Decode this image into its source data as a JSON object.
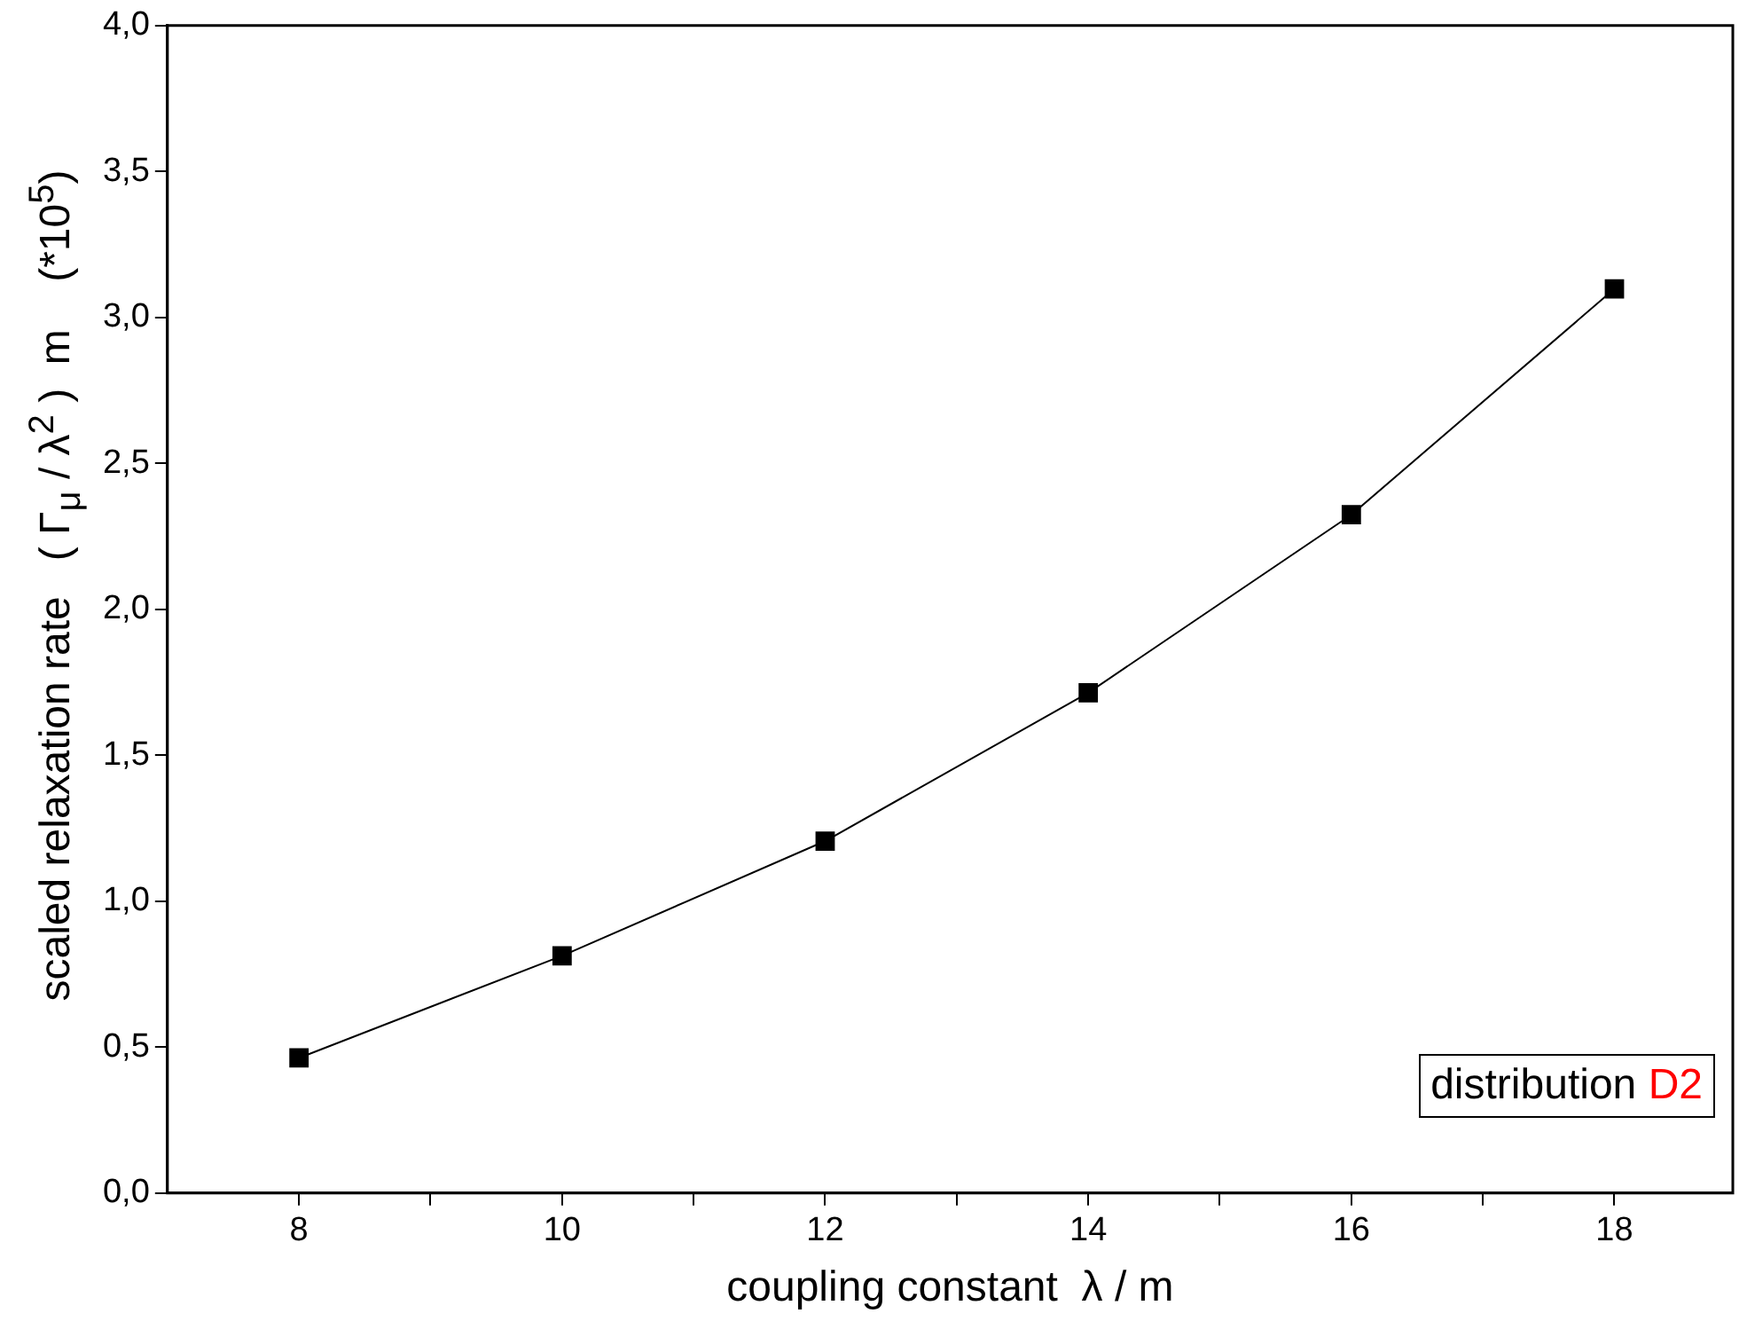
{
  "chart_data": {
    "type": "line",
    "xlabel": "coupling constant  λ / m",
    "ylabel": "scaled relaxation rate   ( Γ$_{μ}$ / λ$^{2}$ )  m    (*10$^{5}$)",
    "annotations": [
      "distribution D2"
    ],
    "x": [
      8,
      10,
      12,
      14,
      16,
      18
    ],
    "series": [
      {
        "color": "#000000",
        "values": [
          0.463,
          0.813,
          1.206,
          1.714,
          2.324,
          3.098
        ]
      }
    ],
    "marker": "square",
    "line_style": "solid",
    "xlim": [
      7,
      18.9
    ],
    "xticks": [
      8,
      {
        "value": 9,
        "label": null
      },
      10,
      {
        "value": 11,
        "label": null
      },
      12,
      {
        "value": 13,
        "label": null
      },
      14,
      {
        "value": 15,
        "label": null
      },
      16,
      {
        "value": 17,
        "label": null
      },
      18
    ],
    "ylim": [
      0,
      4
    ],
    "yticks": [
      {
        "value": 0,
        "label": "0,0"
      },
      {
        "value": 0.5,
        "label": "0,5"
      },
      {
        "value": 1,
        "label": "1,0"
      },
      {
        "value": 1.5,
        "label": "1,5"
      },
      {
        "value": 2,
        "label": "2,0"
      },
      {
        "value": 2.5,
        "label": "2,5"
      },
      {
        "value": 3,
        "label": "3,0"
      },
      {
        "value": 3.5,
        "label": "3,5"
      },
      {
        "value": 4,
        "label": "4,0"
      }
    ]
  }
}
